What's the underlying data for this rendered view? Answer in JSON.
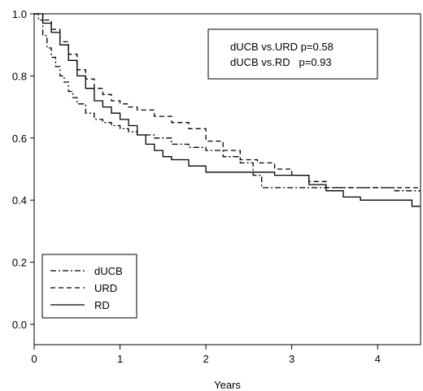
{
  "chart_data": {
    "type": "line",
    "title": "",
    "xlabel": "Years",
    "ylabel": "",
    "xlim": [
      0,
      4.5
    ],
    "ylim": [
      0,
      1.0
    ],
    "x_ticks": [
      {
        "value": 0,
        "label": "0"
      },
      {
        "value": 1,
        "label": "1"
      },
      {
        "value": 2,
        "label": "2"
      },
      {
        "value": 3,
        "label": "3"
      },
      {
        "value": 4,
        "label": "4"
      }
    ],
    "y_ticks": [
      {
        "value": 0.0,
        "label": "0.0"
      },
      {
        "value": 0.2,
        "label": "0.2"
      },
      {
        "value": 0.4,
        "label": "0.4"
      },
      {
        "value": 0.6,
        "label": "0.6"
      },
      {
        "value": 0.8,
        "label": "0.8"
      },
      {
        "value": 1.0,
        "label": "1.0"
      }
    ],
    "grid": false,
    "legend_position": "bottom-left",
    "annotation": {
      "lines": [
        "dUCB vs.URD p=0.58",
        "dUCB vs.RD   p=0.93"
      ],
      "position": "top-right"
    },
    "series": [
      {
        "name": "dUCB",
        "dash": "dashdot",
        "points": [
          [
            0,
            1.0
          ],
          [
            0.05,
            0.98
          ],
          [
            0.1,
            0.93
          ],
          [
            0.15,
            0.89
          ],
          [
            0.2,
            0.86
          ],
          [
            0.25,
            0.83
          ],
          [
            0.3,
            0.8
          ],
          [
            0.35,
            0.78
          ],
          [
            0.4,
            0.75
          ],
          [
            0.45,
            0.73
          ],
          [
            0.5,
            0.71
          ],
          [
            0.6,
            0.68
          ],
          [
            0.7,
            0.66
          ],
          [
            0.8,
            0.65
          ],
          [
            0.9,
            0.64
          ],
          [
            1.0,
            0.63
          ],
          [
            1.1,
            0.62
          ],
          [
            1.2,
            0.61
          ],
          [
            1.4,
            0.6
          ],
          [
            1.6,
            0.58
          ],
          [
            1.8,
            0.57
          ],
          [
            2.0,
            0.56
          ],
          [
            2.2,
            0.54
          ],
          [
            2.4,
            0.52
          ],
          [
            2.55,
            0.48
          ],
          [
            2.65,
            0.44
          ],
          [
            2.8,
            0.44
          ],
          [
            3.0,
            0.44
          ],
          [
            3.4,
            0.44
          ],
          [
            3.8,
            0.44
          ],
          [
            4.2,
            0.43
          ],
          [
            4.5,
            0.43
          ]
        ]
      },
      {
        "name": "URD",
        "dash": "dashed",
        "points": [
          [
            0,
            1.0
          ],
          [
            0.1,
            0.98
          ],
          [
            0.2,
            0.95
          ],
          [
            0.3,
            0.91
          ],
          [
            0.4,
            0.87
          ],
          [
            0.5,
            0.82
          ],
          [
            0.6,
            0.79
          ],
          [
            0.7,
            0.76
          ],
          [
            0.8,
            0.74
          ],
          [
            0.9,
            0.72
          ],
          [
            1.0,
            0.71
          ],
          [
            1.1,
            0.7
          ],
          [
            1.2,
            0.69
          ],
          [
            1.4,
            0.67
          ],
          [
            1.6,
            0.65
          ],
          [
            1.8,
            0.63
          ],
          [
            2.0,
            0.59
          ],
          [
            2.2,
            0.56
          ],
          [
            2.4,
            0.53
          ],
          [
            2.6,
            0.52
          ],
          [
            2.8,
            0.5
          ],
          [
            3.0,
            0.48
          ],
          [
            3.2,
            0.46
          ],
          [
            3.4,
            0.44
          ],
          [
            3.6,
            0.44
          ],
          [
            4.0,
            0.44
          ],
          [
            4.5,
            0.44
          ]
        ]
      },
      {
        "name": "RD",
        "dash": "solid",
        "points": [
          [
            0,
            1.0
          ],
          [
            0.1,
            0.97
          ],
          [
            0.2,
            0.94
          ],
          [
            0.3,
            0.9
          ],
          [
            0.4,
            0.85
          ],
          [
            0.5,
            0.8
          ],
          [
            0.6,
            0.76
          ],
          [
            0.7,
            0.72
          ],
          [
            0.8,
            0.7
          ],
          [
            0.9,
            0.68
          ],
          [
            1.0,
            0.66
          ],
          [
            1.1,
            0.64
          ],
          [
            1.2,
            0.61
          ],
          [
            1.3,
            0.58
          ],
          [
            1.4,
            0.56
          ],
          [
            1.5,
            0.54
          ],
          [
            1.6,
            0.53
          ],
          [
            1.8,
            0.51
          ],
          [
            2.0,
            0.49
          ],
          [
            2.2,
            0.49
          ],
          [
            2.6,
            0.49
          ],
          [
            2.8,
            0.48
          ],
          [
            3.0,
            0.48
          ],
          [
            3.2,
            0.45
          ],
          [
            3.4,
            0.43
          ],
          [
            3.6,
            0.41
          ],
          [
            3.8,
            0.4
          ],
          [
            4.0,
            0.4
          ],
          [
            4.2,
            0.4
          ],
          [
            4.4,
            0.38
          ],
          [
            4.5,
            0.38
          ]
        ]
      }
    ]
  }
}
